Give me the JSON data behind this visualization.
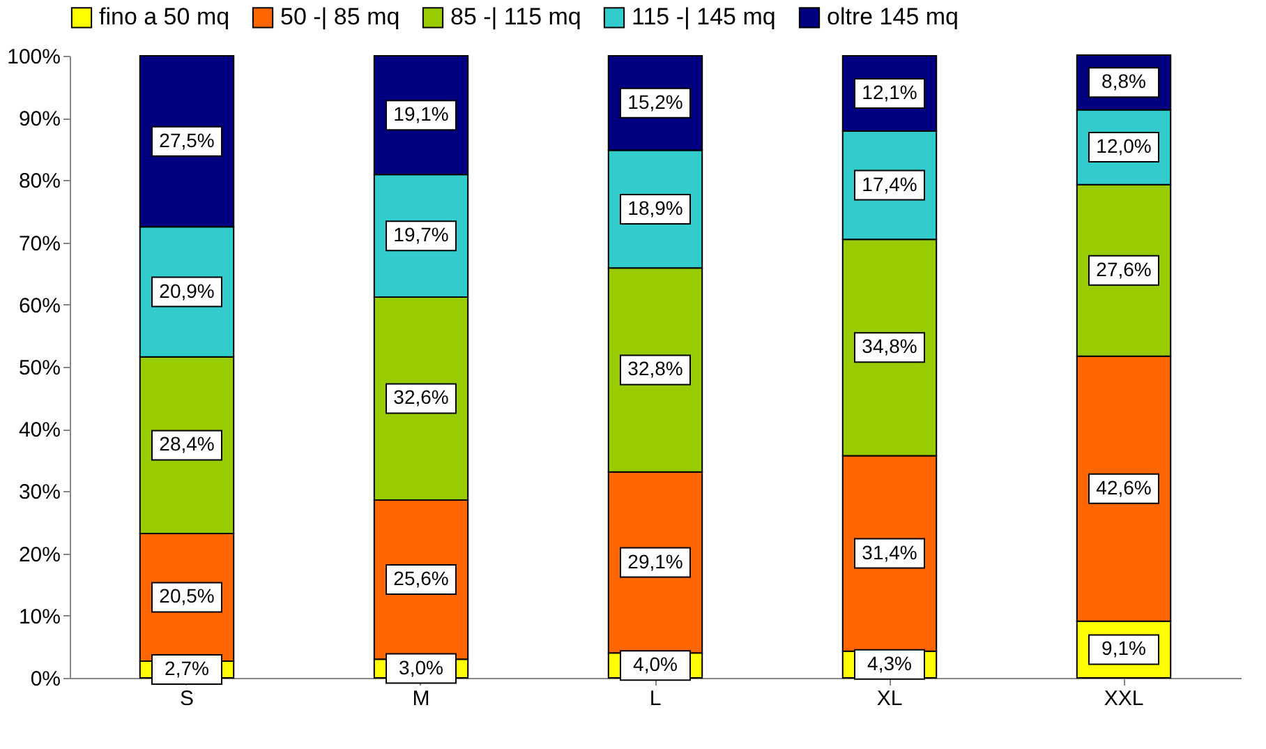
{
  "chart_data": {
    "type": "bar",
    "stacked": true,
    "categories": [
      "S",
      "M",
      "L",
      "XL",
      "XXL"
    ],
    "series": [
      {
        "name": "fino a 50 mq",
        "color": "#ffff00",
        "values": [
          2.7,
          3.0,
          4.0,
          4.3,
          9.1
        ],
        "value_labels": [
          "2,7%",
          "3,0%",
          "4,0%",
          "4,3%",
          "9,1%"
        ]
      },
      {
        "name": "50 -| 85 mq",
        "color": "#ff6600",
        "values": [
          20.5,
          25.6,
          29.1,
          31.4,
          42.6
        ],
        "value_labels": [
          "20,5%",
          "25,6%",
          "29,1%",
          "31,4%",
          "42,6%"
        ]
      },
      {
        "name": "85 -| 115 mq",
        "color": "#99cc00",
        "values": [
          28.4,
          32.6,
          32.8,
          34.8,
          27.6
        ],
        "value_labels": [
          "28,4%",
          "32,6%",
          "32,8%",
          "34,8%",
          "27,6%"
        ]
      },
      {
        "name": "115 -| 145 mq",
        "color": "#33cccc",
        "values": [
          20.9,
          19.7,
          18.9,
          17.4,
          12.0
        ],
        "value_labels": [
          "20,9%",
          "19,7%",
          "18,9%",
          "17,4%",
          "12,0%"
        ]
      },
      {
        "name": "oltre 145 mq",
        "color": "#000080",
        "values": [
          27.5,
          19.1,
          15.2,
          12.1,
          8.8
        ],
        "value_labels": [
          "27,5%",
          "19,1%",
          "15,2%",
          "12,1%",
          "8,8%"
        ]
      }
    ],
    "ylim": [
      0,
      100
    ],
    "yticks": [
      {
        "value": 0,
        "label": "0%"
      },
      {
        "value": 10,
        "label": "10%"
      },
      {
        "value": 20,
        "label": "20%"
      },
      {
        "value": 30,
        "label": "30%"
      },
      {
        "value": 40,
        "label": "40%"
      },
      {
        "value": 50,
        "label": "50%"
      },
      {
        "value": 60,
        "label": "60%"
      },
      {
        "value": 70,
        "label": "70%"
      },
      {
        "value": 80,
        "label": "80%"
      },
      {
        "value": 90,
        "label": "90%"
      },
      {
        "value": 100,
        "label": "100%"
      }
    ],
    "grid": false,
    "legend": "top"
  }
}
